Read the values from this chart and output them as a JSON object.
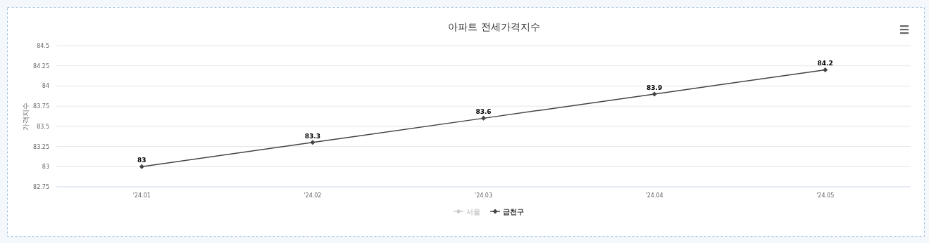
{
  "chart_data": {
    "type": "line",
    "title": "아파트 전세가격지수",
    "ylabel": "가격지수",
    "categories": [
      "'24.01",
      "'24.02",
      "'24.03",
      "'24.04",
      "'24.05"
    ],
    "series": [
      {
        "name": "서울",
        "color": "#cccccc",
        "values": [
          null,
          null,
          null,
          null,
          null
        ]
      },
      {
        "name": "금천구",
        "color": "#434348",
        "values": [
          83,
          83.3,
          83.6,
          83.9,
          84.2
        ]
      }
    ],
    "ylim": [
      82.75,
      84.5
    ],
    "yticks": [
      82.75,
      83,
      83.25,
      83.5,
      83.75,
      84,
      84.25,
      84.5
    ],
    "grid": "y",
    "legend": "bottom",
    "marker": "diamond",
    "data_labels": true
  }
}
